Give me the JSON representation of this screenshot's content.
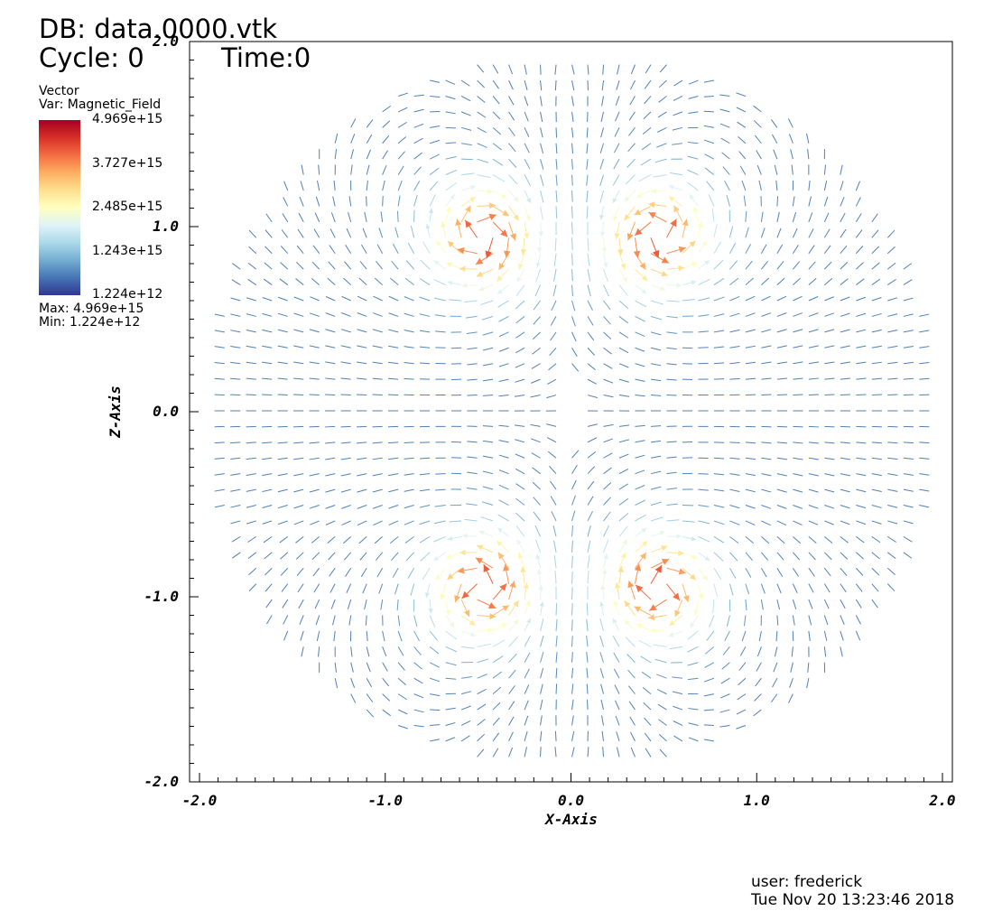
{
  "header": {
    "db": "DB: data.0000.vtk",
    "cycle": "Cycle: 0",
    "time": "Time:0"
  },
  "legend": {
    "type_label": "Vector",
    "var_label": "Var: Magnetic_Field",
    "ticks": [
      "4.969e+15",
      "3.727e+15",
      "2.485e+15",
      "1.243e+15",
      "1.224e+12"
    ],
    "max_label": "Max:  4.969e+15",
    "min_label": "Min:  1.224e+12",
    "colormap": [
      "#a50026",
      "#d73027",
      "#f46d43",
      "#fdae61",
      "#fee090",
      "#ffffbf",
      "#e0f3f8",
      "#abd9e9",
      "#74add1",
      "#4575b4",
      "#313695"
    ]
  },
  "footer": {
    "user": "user: frederick",
    "date": "Tue Nov 20 13:23:46 2018"
  },
  "chart_data": {
    "type": "vector field (quiver)",
    "title": "",
    "xlabel": "X-Axis",
    "ylabel": "Z-Axis",
    "xlim": [
      -2.0,
      2.0
    ],
    "ylim": [
      -2.0,
      2.0
    ],
    "xticks": [
      "-2.0",
      "-1.0",
      "0.0",
      "1.0",
      "2.0"
    ],
    "yticks": [
      "-2.0",
      "-1.0",
      "0.0",
      "1.0",
      "2.0"
    ],
    "domain_radius": 1.95,
    "field_min": 1224000000000.0,
    "field_max": 4969000000000000.0,
    "field_variable": "Magnetic_Field",
    "high_magnitude_lobes": [
      {
        "x": -0.45,
        "z": 0.95,
        "magnitude": 4969000000000000.0
      },
      {
        "x": 0.45,
        "z": 0.95,
        "magnitude": 4969000000000000.0
      },
      {
        "x": -0.45,
        "z": -0.95,
        "magnitude": 4969000000000000.0
      },
      {
        "x": 0.45,
        "z": -0.95,
        "magnitude": 4969000000000000.0
      }
    ]
  }
}
